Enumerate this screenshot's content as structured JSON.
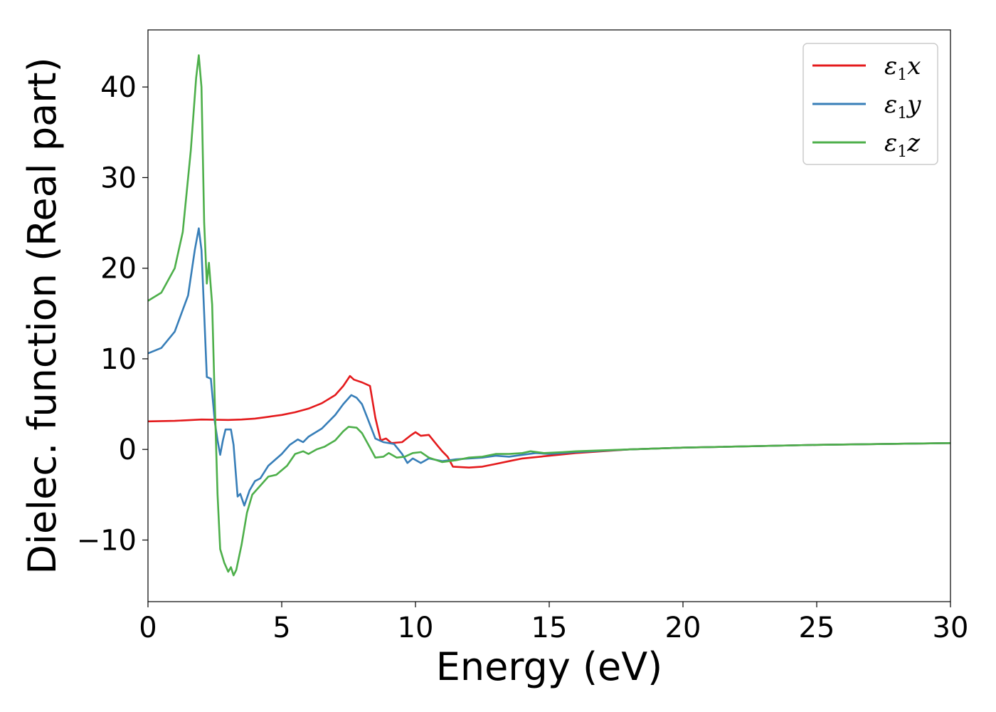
{
  "chart_data": {
    "type": "line",
    "title": "",
    "xlabel": "Energy (eV)",
    "ylabel": "Dielec. function (Real part)",
    "xlim": [
      0,
      30
    ],
    "ylim": [
      -16.8,
      46.3
    ],
    "xticks": [
      "0",
      "5",
      "10",
      "15",
      "20",
      "25",
      "30"
    ],
    "yticks": [
      "−10",
      "0",
      "10",
      "20",
      "30",
      "40"
    ],
    "grid": false,
    "legend_position": "top-right",
    "series": [
      {
        "name": "x",
        "legend": {
          "sym": "ε",
          "sub": "1",
          "axis": "x"
        },
        "color": "#e41a1c",
        "points": [
          [
            0,
            3.1
          ],
          [
            1,
            3.15
          ],
          [
            2,
            3.3
          ],
          [
            3,
            3.25
          ],
          [
            3.5,
            3.3
          ],
          [
            4,
            3.4
          ],
          [
            4.5,
            3.6
          ],
          [
            5,
            3.8
          ],
          [
            5.5,
            4.1
          ],
          [
            6,
            4.5
          ],
          [
            6.5,
            5.1
          ],
          [
            7,
            6.0
          ],
          [
            7.3,
            7.0
          ],
          [
            7.55,
            8.1
          ],
          [
            7.7,
            7.7
          ],
          [
            8,
            7.4
          ],
          [
            8.3,
            7.0
          ],
          [
            8.5,
            3.5
          ],
          [
            8.7,
            1.0
          ],
          [
            8.9,
            1.2
          ],
          [
            9.1,
            0.7
          ],
          [
            9.5,
            0.8
          ],
          [
            9.8,
            1.5
          ],
          [
            10,
            1.9
          ],
          [
            10.2,
            1.5
          ],
          [
            10.5,
            1.6
          ],
          [
            10.8,
            0.5
          ],
          [
            11,
            -0.2
          ],
          [
            11.2,
            -0.8
          ],
          [
            11.4,
            -1.9
          ],
          [
            12,
            -2.0
          ],
          [
            12.5,
            -1.9
          ],
          [
            13,
            -1.6
          ],
          [
            13.5,
            -1.3
          ],
          [
            14,
            -1.0
          ],
          [
            15,
            -0.7
          ],
          [
            16,
            -0.4
          ],
          [
            18,
            0.0
          ],
          [
            20,
            0.2
          ],
          [
            25,
            0.5
          ],
          [
            30,
            0.7
          ]
        ]
      },
      {
        "name": "y",
        "legend": {
          "sym": "ε",
          "sub": "1",
          "axis": "y"
        },
        "color": "#377eb8",
        "points": [
          [
            0,
            10.6
          ],
          [
            0.5,
            11.2
          ],
          [
            1.0,
            13.0
          ],
          [
            1.5,
            17.0
          ],
          [
            1.75,
            22.0
          ],
          [
            1.9,
            24.4
          ],
          [
            2.0,
            22.0
          ],
          [
            2.1,
            15.0
          ],
          [
            2.2,
            8.0
          ],
          [
            2.35,
            7.8
          ],
          [
            2.5,
            3.0
          ],
          [
            2.6,
            1.0
          ],
          [
            2.7,
            -0.6
          ],
          [
            2.8,
            1.0
          ],
          [
            2.9,
            2.2
          ],
          [
            3.1,
            2.2
          ],
          [
            3.2,
            0.5
          ],
          [
            3.35,
            -5.2
          ],
          [
            3.45,
            -4.9
          ],
          [
            3.6,
            -6.2
          ],
          [
            3.8,
            -4.5
          ],
          [
            4.0,
            -3.5
          ],
          [
            4.2,
            -3.2
          ],
          [
            4.5,
            -1.8
          ],
          [
            5,
            -0.5
          ],
          [
            5.3,
            0.5
          ],
          [
            5.6,
            1.1
          ],
          [
            5.8,
            0.8
          ],
          [
            6.0,
            1.4
          ],
          [
            6.5,
            2.3
          ],
          [
            7.0,
            3.8
          ],
          [
            7.3,
            5.0
          ],
          [
            7.6,
            6.0
          ],
          [
            7.8,
            5.7
          ],
          [
            8.0,
            5.0
          ],
          [
            8.2,
            3.5
          ],
          [
            8.5,
            1.2
          ],
          [
            8.8,
            0.8
          ],
          [
            9.2,
            0.6
          ],
          [
            9.5,
            -0.5
          ],
          [
            9.7,
            -1.5
          ],
          [
            9.9,
            -1.0
          ],
          [
            10.2,
            -1.5
          ],
          [
            10.5,
            -1.0
          ],
          [
            11,
            -1.3
          ],
          [
            11.5,
            -1.1
          ],
          [
            12,
            -1.0
          ],
          [
            12.5,
            -0.9
          ],
          [
            13,
            -0.7
          ],
          [
            13.5,
            -0.8
          ],
          [
            14,
            -0.6
          ],
          [
            14.5,
            -0.4
          ],
          [
            15,
            -0.5
          ],
          [
            16,
            -0.3
          ],
          [
            18,
            0.0
          ],
          [
            20,
            0.2
          ],
          [
            25,
            0.5
          ],
          [
            30,
            0.7
          ]
        ]
      },
      {
        "name": "z",
        "legend": {
          "sym": "ε",
          "sub": "1",
          "axis": "z"
        },
        "color": "#4daf4a",
        "points": [
          [
            0,
            16.4
          ],
          [
            0.5,
            17.3
          ],
          [
            1.0,
            20.0
          ],
          [
            1.3,
            24.0
          ],
          [
            1.6,
            33.0
          ],
          [
            1.8,
            41.0
          ],
          [
            1.9,
            43.5
          ],
          [
            2.0,
            40.0
          ],
          [
            2.1,
            25.0
          ],
          [
            2.2,
            18.3
          ],
          [
            2.28,
            20.6
          ],
          [
            2.4,
            16.0
          ],
          [
            2.5,
            5.0
          ],
          [
            2.6,
            -5.0
          ],
          [
            2.7,
            -11.0
          ],
          [
            2.85,
            -12.5
          ],
          [
            3.0,
            -13.5
          ],
          [
            3.1,
            -13.0
          ],
          [
            3.2,
            -13.9
          ],
          [
            3.3,
            -13.3
          ],
          [
            3.5,
            -10.5
          ],
          [
            3.7,
            -7.0
          ],
          [
            3.9,
            -5.0
          ],
          [
            4.2,
            -4.0
          ],
          [
            4.5,
            -3.0
          ],
          [
            4.8,
            -2.8
          ],
          [
            5.2,
            -1.8
          ],
          [
            5.5,
            -0.5
          ],
          [
            5.8,
            -0.2
          ],
          [
            6.0,
            -0.5
          ],
          [
            6.3,
            0.0
          ],
          [
            6.6,
            0.3
          ],
          [
            7.0,
            1.0
          ],
          [
            7.3,
            2.0
          ],
          [
            7.5,
            2.5
          ],
          [
            7.8,
            2.4
          ],
          [
            8.0,
            1.8
          ],
          [
            8.3,
            0.2
          ],
          [
            8.5,
            -0.9
          ],
          [
            8.8,
            -0.8
          ],
          [
            9.0,
            -0.4
          ],
          [
            9.3,
            -0.9
          ],
          [
            9.6,
            -0.8
          ],
          [
            9.9,
            -0.4
          ],
          [
            10.2,
            -0.3
          ],
          [
            10.5,
            -0.9
          ],
          [
            11.0,
            -1.4
          ],
          [
            11.5,
            -1.2
          ],
          [
            12,
            -0.9
          ],
          [
            12.5,
            -0.8
          ],
          [
            13,
            -0.5
          ],
          [
            13.5,
            -0.5
          ],
          [
            14,
            -0.4
          ],
          [
            14.3,
            -0.2
          ],
          [
            14.8,
            -0.4
          ],
          [
            15.5,
            -0.3
          ],
          [
            16,
            -0.2
          ],
          [
            18,
            0.0
          ],
          [
            20,
            0.2
          ],
          [
            25,
            0.5
          ],
          [
            30,
            0.7
          ]
        ]
      }
    ]
  }
}
